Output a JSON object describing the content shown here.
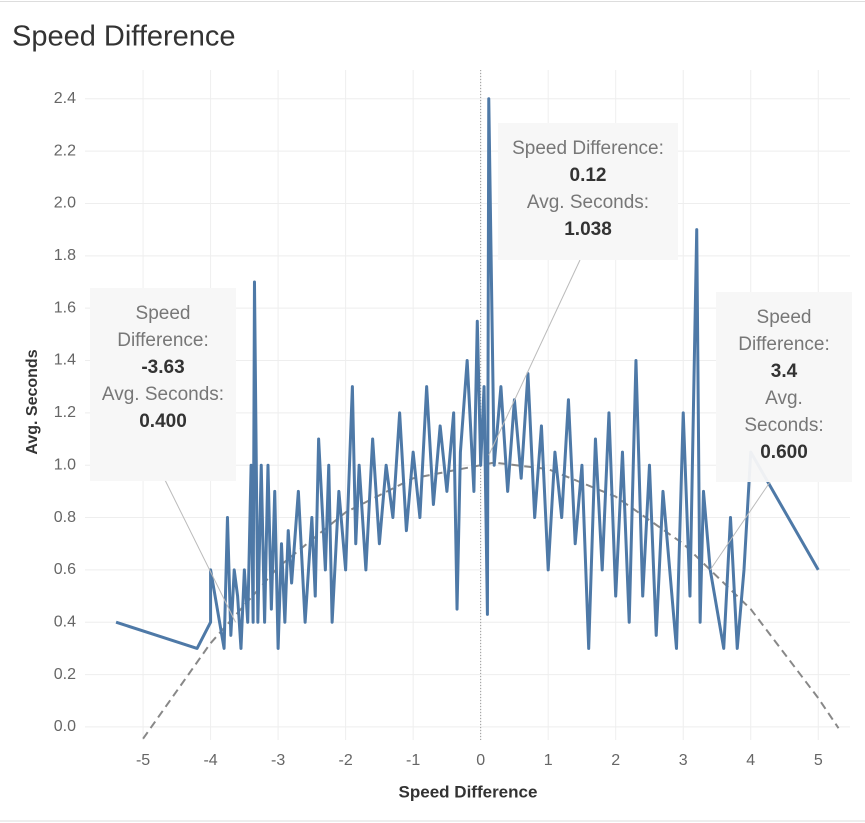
{
  "chart_data": {
    "type": "line",
    "title": "Speed Difference",
    "x_label": "Speed Difference",
    "y_label": "Avg. Seconds",
    "xlim": [
      -5.86,
      5.47
    ],
    "ylim": [
      -0.05,
      2.51
    ],
    "xticks": [
      -5,
      -4,
      -3,
      -2,
      -1,
      0,
      1,
      2,
      3,
      4,
      5
    ],
    "yticks": [
      {
        "value": 0,
        "label": "0.0"
      },
      0.2,
      0.4,
      0.6,
      0.8,
      {
        "value": 1,
        "label": "1.0"
      },
      1.2,
      1.4,
      1.6,
      1.8,
      {
        "value": 2,
        "label": "2.0"
      },
      2.2,
      2.4
    ],
    "grid": true,
    "series": [
      {
        "color": "#4e79a7",
        "x": [
          -5.4,
          -4.2,
          -4.0,
          -4.0,
          -3.8,
          -3.75,
          -3.7,
          -3.65,
          -3.6,
          -3.55,
          -3.5,
          -3.45,
          -3.4,
          -3.37,
          -3.35,
          -3.3,
          -3.25,
          -3.2,
          -3.15,
          -3.1,
          -3.05,
          -3.0,
          -2.95,
          -2.9,
          -2.85,
          -2.8,
          -2.7,
          -2.6,
          -2.5,
          -2.45,
          -2.4,
          -2.3,
          -2.25,
          -2.2,
          -2.1,
          -2.0,
          -1.9,
          -1.85,
          -1.8,
          -1.7,
          -1.6,
          -1.5,
          -1.4,
          -1.3,
          -1.2,
          -1.1,
          -1.0,
          -0.9,
          -0.8,
          -0.7,
          -0.6,
          -0.5,
          -0.4,
          -0.35,
          -0.3,
          -0.2,
          -0.1,
          -0.05,
          0.0,
          0.05,
          0.1,
          0.12,
          0.2,
          0.3,
          0.4,
          0.5,
          0.6,
          0.7,
          0.8,
          0.9,
          1.0,
          1.1,
          1.2,
          1.3,
          1.4,
          1.5,
          1.6,
          1.7,
          1.8,
          1.9,
          2.0,
          2.1,
          2.2,
          2.3,
          2.4,
          2.5,
          2.6,
          2.7,
          2.8,
          2.9,
          3.0,
          3.1,
          3.2,
          3.25,
          3.3,
          3.4,
          3.5,
          3.6,
          3.7,
          3.8,
          3.9,
          4.0,
          5.0
        ],
        "values": [
          0.4,
          0.3,
          0.4,
          0.6,
          0.3,
          0.8,
          0.35,
          0.6,
          0.5,
          0.3,
          0.6,
          0.4,
          1.0,
          0.4,
          1.7,
          0.4,
          1.0,
          0.4,
          1.0,
          0.45,
          0.9,
          0.3,
          0.7,
          0.4,
          0.75,
          0.55,
          0.9,
          0.4,
          0.8,
          0.5,
          1.1,
          0.6,
          1.0,
          0.4,
          0.9,
          0.6,
          1.3,
          0.7,
          1.0,
          0.6,
          1.1,
          0.7,
          1.0,
          0.8,
          1.2,
          0.75,
          1.05,
          0.8,
          1.3,
          0.85,
          1.15,
          0.9,
          1.2,
          0.45,
          1.05,
          1.4,
          0.9,
          1.55,
          1.0,
          1.3,
          0.43,
          2.4,
          1.0,
          1.3,
          0.9,
          1.25,
          0.95,
          1.35,
          0.8,
          1.15,
          0.6,
          1.05,
          0.8,
          1.25,
          0.7,
          1.0,
          0.3,
          1.1,
          0.6,
          1.2,
          0.5,
          1.05,
          0.4,
          1.4,
          0.5,
          1.0,
          0.35,
          0.9,
          0.6,
          0.3,
          1.2,
          0.5,
          1.9,
          0.4,
          0.9,
          0.6,
          0.45,
          0.3,
          0.8,
          0.3,
          0.6,
          1.05,
          0.6
        ]
      }
    ],
    "trend": {
      "color": "#888888",
      "x": [
        -5.0,
        -4.0,
        -3.0,
        -2.0,
        -1.0,
        0.2,
        1.0,
        2.0,
        3.0,
        4.0,
        5.0,
        5.3
      ],
      "values": [
        -0.045,
        0.32,
        0.61,
        0.82,
        0.95,
        1.01,
        0.985,
        0.88,
        0.7,
        0.45,
        0.11,
        -0.005
      ]
    },
    "annotations": [
      {
        "x_text": "Speed Difference:",
        "x": -3.63,
        "y_text": "Avg. Seconds:",
        "y": 0.4,
        "y_label": "0.400"
      },
      {
        "x_text": "Speed Difference:",
        "x": 0.12,
        "y_text": "Avg. Seconds:",
        "y": 1.038,
        "y_label": "1.038"
      },
      {
        "x_text": "Speed Difference:",
        "x": 3.4,
        "y_text": "Avg. Seconds:",
        "y": 0.6,
        "y_label": "0.600"
      }
    ]
  }
}
